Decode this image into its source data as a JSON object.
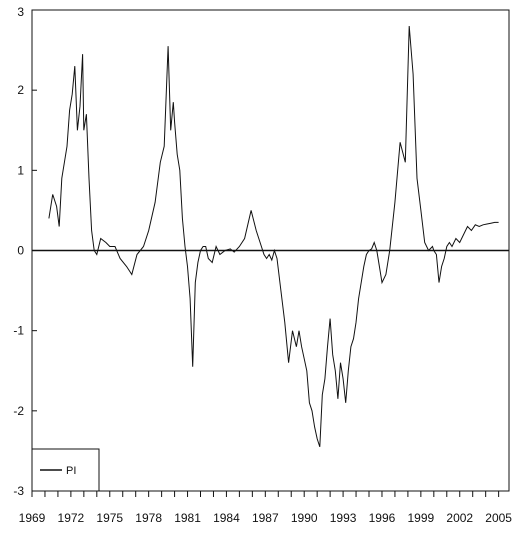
{
  "chart_data": {
    "type": "line",
    "title": "",
    "xlabel": "",
    "ylabel": "",
    "xlim": [
      1969,
      2005.8
    ],
    "ylim": [
      -3,
      3
    ],
    "x_tick_labels": [
      "1969",
      "1972",
      "1975",
      "1978",
      "1981",
      "1984",
      "1987",
      "1990",
      "1993",
      "1996",
      "1999",
      "2002",
      "2005"
    ],
    "y_tick_labels": [
      "3",
      "2",
      "1",
      "0",
      "-1",
      "-2",
      "-3"
    ],
    "zero_line": true,
    "grid": false,
    "legend": {
      "position": "bottom-left",
      "entries": [
        "PI"
      ]
    },
    "series": [
      {
        "name": "PI",
        "color": "#111111",
        "x": [
          1970.3,
          1970.6,
          1970.9,
          1971.1,
          1971.3,
          1971.5,
          1971.7,
          1971.9,
          1972.1,
          1972.3,
          1972.5,
          1972.7,
          1972.9,
          1973.0,
          1973.2,
          1973.4,
          1973.6,
          1973.8,
          1974.0,
          1974.3,
          1974.7,
          1975.0,
          1975.4,
          1975.8,
          1976.3,
          1976.7,
          1977.1,
          1977.6,
          1978.0,
          1978.5,
          1978.9,
          1979.2,
          1979.5,
          1979.7,
          1979.9,
          1980.0,
          1980.2,
          1980.4,
          1980.6,
          1980.8,
          1981.0,
          1981.2,
          1981.4,
          1981.6,
          1981.8,
          1982.0,
          1982.2,
          1982.4,
          1982.6,
          1982.9,
          1983.2,
          1983.5,
          1983.9,
          1984.3,
          1984.6,
          1985.0,
          1985.4,
          1985.9,
          1986.3,
          1986.6,
          1986.9,
          1987.1,
          1987.3,
          1987.5,
          1987.7,
          1987.9,
          1988.2,
          1988.5,
          1988.8,
          1989.1,
          1989.4,
          1989.6,
          1989.8,
          1990.0,
          1990.2,
          1990.4,
          1990.6,
          1990.8,
          1991.0,
          1991.2,
          1991.4,
          1991.6,
          1991.8,
          1992.0,
          1992.2,
          1992.4,
          1992.6,
          1992.8,
          1993.0,
          1993.2,
          1993.4,
          1993.6,
          1993.8,
          1994.0,
          1994.2,
          1994.4,
          1994.6,
          1994.8,
          1995.0,
          1995.2,
          1995.4,
          1995.6,
          1995.8,
          1996.0,
          1996.3,
          1996.6,
          1997.0,
          1997.4,
          1997.8,
          1998.1,
          1998.4,
          1998.7,
          1999.0,
          1999.3,
          1999.6,
          1999.9,
          2000.0,
          2000.2,
          2000.4,
          2000.6,
          2000.8,
          2001.0,
          2001.2,
          2001.4,
          2001.7,
          2002.0,
          2002.3,
          2002.6,
          2002.9,
          2003.2,
          2003.5,
          2003.8,
          2004.1,
          2004.4,
          2004.7,
          2005.0
        ],
        "y": [
          0.4,
          0.7,
          0.55,
          0.3,
          0.9,
          1.1,
          1.3,
          1.75,
          1.95,
          2.3,
          1.5,
          1.8,
          2.45,
          1.5,
          1.7,
          0.9,
          0.25,
          0.0,
          -0.05,
          0.15,
          0.1,
          0.05,
          0.05,
          -0.1,
          -0.2,
          -0.3,
          -0.05,
          0.05,
          0.25,
          0.6,
          1.1,
          1.3,
          2.55,
          1.5,
          1.85,
          1.6,
          1.2,
          1.0,
          0.4,
          0.05,
          -0.2,
          -0.6,
          -1.45,
          -0.4,
          -0.15,
          0.0,
          0.05,
          0.05,
          -0.1,
          -0.15,
          0.05,
          -0.05,
          0.0,
          0.02,
          -0.02,
          0.05,
          0.15,
          0.5,
          0.25,
          0.1,
          -0.05,
          -0.1,
          -0.05,
          -0.12,
          0.0,
          -0.1,
          -0.5,
          -0.9,
          -1.4,
          -1.0,
          -1.2,
          -1.0,
          -1.2,
          -1.35,
          -1.5,
          -1.9,
          -2.0,
          -2.2,
          -2.35,
          -2.45,
          -1.8,
          -1.6,
          -1.2,
          -0.85,
          -1.3,
          -1.5,
          -1.85,
          -1.4,
          -1.6,
          -1.9,
          -1.5,
          -1.2,
          -1.1,
          -0.9,
          -0.6,
          -0.4,
          -0.2,
          -0.05,
          0.0,
          0.02,
          0.1,
          0.0,
          -0.2,
          -0.4,
          -0.3,
          0.0,
          0.6,
          1.35,
          1.1,
          2.8,
          2.2,
          0.9,
          0.5,
          0.1,
          0.0,
          0.05,
          0.0,
          -0.05,
          -0.4,
          -0.2,
          -0.1,
          0.05,
          0.1,
          0.05,
          0.15,
          0.1,
          0.2,
          0.3,
          0.25,
          0.32,
          0.3,
          0.32,
          0.33,
          0.34,
          0.35,
          0.35
        ]
      }
    ]
  }
}
